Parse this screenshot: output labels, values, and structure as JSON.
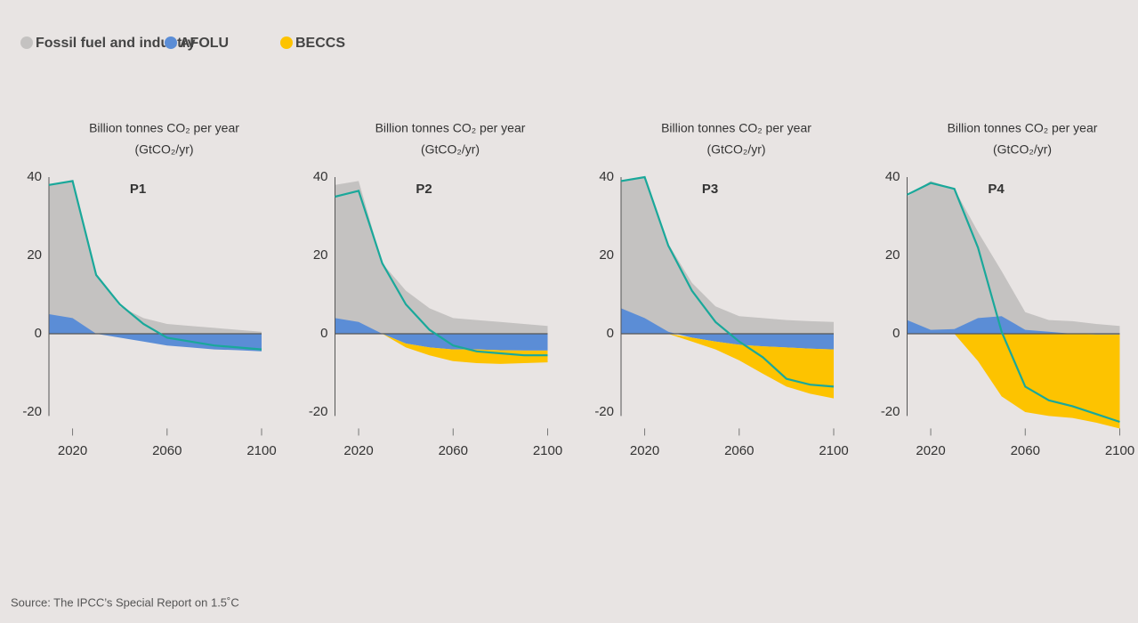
{
  "legend": [
    {
      "name": "Fossil fuel and industry",
      "color": "#c4c2c1"
    },
    {
      "name": "AFOLU",
      "color": "#5b8dd6"
    },
    {
      "name": "BECCS",
      "color": "#fdc300"
    }
  ],
  "source": "Source: The IPCC’s Special Report on 1.5˚C",
  "chart_data": [
    {
      "type": "area",
      "title": "P1",
      "ylabel": [
        "Billion tonnes CO₂ per year",
        "(GtCO₂/yr)"
      ],
      "x": [
        2010,
        2020,
        2030,
        2040,
        2050,
        2060,
        2070,
        2080,
        2090,
        2100
      ],
      "series": [
        {
          "values": [
            38,
            39,
            15,
            7,
            4,
            2.5,
            2,
            1.5,
            1,
            0.5
          ]
        },
        {
          "values": [
            5,
            4,
            0,
            -1,
            -2,
            -3,
            -3.5,
            -4,
            -4.2,
            -4.5
          ]
        },
        {
          "values": [
            0,
            0,
            0,
            0,
            0,
            0,
            0,
            0,
            0,
            0
          ]
        }
      ],
      "net": {
        "color": "#1aa89a",
        "values": [
          38,
          39,
          15,
          7.5,
          2.5,
          -1,
          -2,
          -3,
          -3.5,
          -4
        ]
      },
      "xlim": [
        2010,
        2100
      ],
      "xticks": [
        2020,
        2060,
        2100
      ],
      "ylim": [
        -21,
        40
      ],
      "yticks": [
        40,
        20,
        0,
        -20
      ]
    },
    {
      "type": "area",
      "title": "P2",
      "ylabel": [
        "Billion tonnes CO₂ per year",
        "(GtCO₂/yr)"
      ],
      "x": [
        2010,
        2020,
        2030,
        2040,
        2050,
        2060,
        2070,
        2080,
        2090,
        2100
      ],
      "series": [
        {
          "values": [
            38,
            39,
            18,
            11,
            6.5,
            4,
            3.5,
            3,
            2.5,
            2
          ]
        },
        {
          "values": [
            4,
            3,
            0,
            -2.5,
            -3.5,
            -4,
            -4,
            -4.2,
            -4.3,
            -4.3
          ]
        },
        {
          "values": [
            0,
            0,
            0,
            -1,
            -2,
            -3,
            -3.5,
            -3.5,
            -3.2,
            -3
          ]
        }
      ],
      "net": {
        "color": "#1aa89a",
        "values": [
          35,
          36.5,
          18,
          7.5,
          1,
          -3,
          -4.5,
          -5,
          -5.5,
          -5.5
        ]
      },
      "xlim": [
        2010,
        2100
      ],
      "xticks": [
        2020,
        2060,
        2100
      ],
      "ylim": [
        -21,
        40
      ],
      "yticks": [
        40,
        20,
        0,
        -20
      ]
    },
    {
      "type": "area",
      "title": "P3",
      "ylabel": [
        "Billion tonnes CO₂ per year",
        "(GtCO₂/yr)"
      ],
      "x": [
        2010,
        2020,
        2030,
        2040,
        2050,
        2060,
        2070,
        2080,
        2090,
        2100
      ],
      "series": [
        {
          "values": [
            39,
            40,
            23,
            13,
            7,
            4.5,
            4,
            3.5,
            3.2,
            3
          ]
        },
        {
          "values": [
            6.5,
            4,
            0.5,
            -1,
            -2,
            -2.8,
            -3.2,
            -3.5,
            -3.8,
            -4
          ]
        },
        {
          "values": [
            0,
            0,
            0,
            -1,
            -2,
            -4,
            -7,
            -10,
            -11.5,
            -12.5
          ]
        }
      ],
      "net": {
        "color": "#1aa89a",
        "values": [
          39,
          40,
          22.5,
          11,
          3,
          -2,
          -6,
          -11.5,
          -13,
          -13.5
        ]
      },
      "xlim": [
        2010,
        2100
      ],
      "xticks": [
        2020,
        2060,
        2100
      ],
      "ylim": [
        -21,
        40
      ],
      "yticks": [
        40,
        20,
        0,
        -20
      ]
    },
    {
      "type": "area",
      "title": "P4",
      "ylabel": [
        "Billion tonnes CO₂ per year",
        "(GtCO₂/yr)"
      ],
      "x": [
        2010,
        2020,
        2030,
        2040,
        2050,
        2060,
        2070,
        2080,
        2090,
        2100
      ],
      "series": [
        {
          "values": [
            35,
            39,
            37,
            26,
            16,
            5.5,
            3.5,
            3.2,
            2.5,
            2
          ]
        },
        {
          "values": [
            3.5,
            1,
            1.2,
            4,
            4.5,
            1,
            0.5,
            0,
            -0.2,
            -0.2
          ]
        },
        {
          "values": [
            0,
            0,
            0,
            -7,
            -16,
            -20,
            -21,
            -21.5,
            -22.5,
            -24
          ]
        }
      ],
      "net": {
        "color": "#1aa89a",
        "values": [
          35.5,
          38.5,
          37,
          22,
          0.5,
          -13.5,
          -17,
          -18.5,
          -20.5,
          -22.5
        ]
      },
      "xlim": [
        2010,
        2100
      ],
      "xticks": [
        2020,
        2060,
        2100
      ],
      "ylim": [
        -21,
        40
      ],
      "yticks": [
        40,
        20,
        0,
        -20
      ]
    }
  ]
}
